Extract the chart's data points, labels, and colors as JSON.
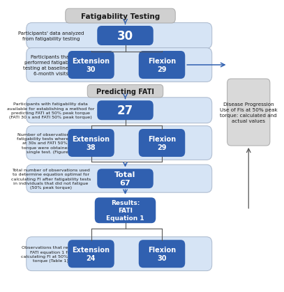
{
  "box_blue_dark": "#3060b0",
  "box_blue_light": "#d6e4f5",
  "box_gray_header": "#d0d0d0",
  "box_gray_side": "#d9d9d9",
  "text_white": "#ffffff",
  "text_dark": "#1a1a1a",
  "arrow_color": "#3060b0",
  "line_color": "#555555",
  "header_text": "Fatigability Testing",
  "subheader_text": "Predicting FATI",
  "side_box_text": "Disease Progression\nUse of FIs at 50% peak\ntorque: calculated and\nactual values",
  "row1_note": "Participants' data analyzed\nfrom fatigability testing",
  "row1_val": "30",
  "row2_note": "Participants that\nperformed fatigability\ntesting at baseline and\n6-month visits",
  "row2_left_label": "Extension",
  "row2_left_val": "30",
  "row2_right_label": "Flexion",
  "row2_right_val": "29",
  "row3_note": "Participants with fatigability data\navailable for establishing a method for\npredicting FATI at 50% peak torque\n(FATI 30 s and FATI 50% peak torque)",
  "row3_val": "27",
  "row4_note": "Number of observations from\nfatigability tests where values\nat 30s and FATI 50% peak\ntorque were obtained in a\nsingle test. (Figure 1)",
  "row4_left_label": "Extension",
  "row4_left_val": "38",
  "row4_right_label": "Flexion",
  "row4_right_val": "29",
  "row5_note": "Total number of observations used\nto determine equation optimal for\ncalculating FI after fatigability tests\nin individuals that did not fatigue\n(50% peak torque)",
  "row5_val": "Total\n67",
  "row6_val": "Results:\nFATI\nEquation 1",
  "row7_note": "Observations that require\nFATI equation 1 for\ncalculating FI at 50% peak\ntorque (Table 1)",
  "row7_left_label": "Extension",
  "row7_left_val": "24",
  "row7_right_label": "Flexion",
  "row7_right_val": "30"
}
